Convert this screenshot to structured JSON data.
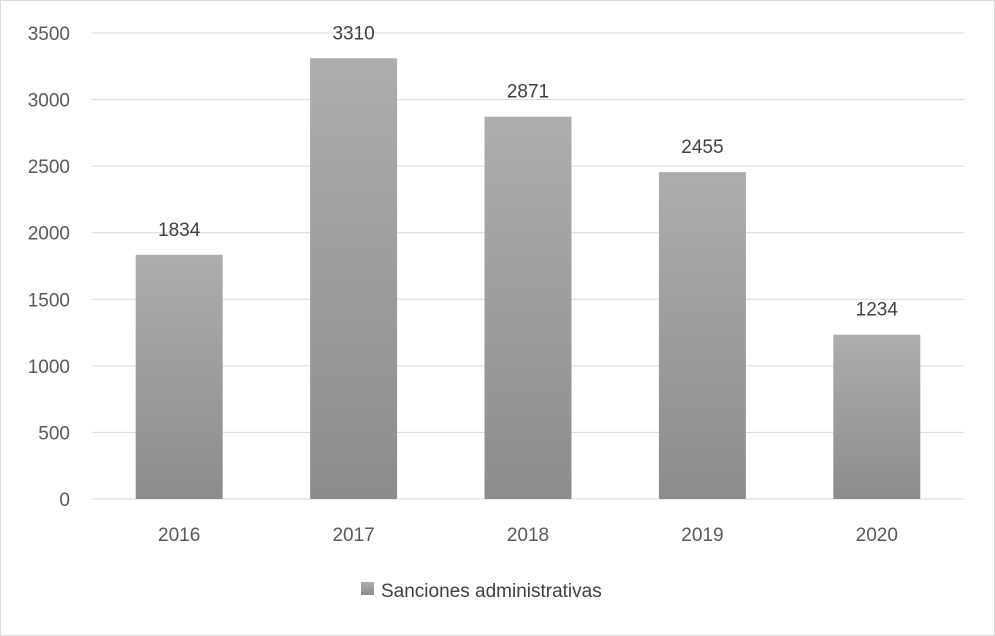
{
  "chart_data": {
    "type": "bar",
    "categories": [
      "2016",
      "2017",
      "2018",
      "2019",
      "2020"
    ],
    "series": [
      {
        "name": "Sanciones administrativas",
        "values": [
          1834,
          3310,
          2871,
          2455,
          1234
        ]
      }
    ],
    "ylim": [
      0,
      3500
    ],
    "yticks": [
      "0",
      "500",
      "1000",
      "1500",
      "2000",
      "2500",
      "3000",
      "3500"
    ],
    "grid": true,
    "legend": "bottom",
    "colors": {
      "bar_top": "#adadad",
      "bar_bottom": "#8c8c8c",
      "grid": "#d9d9d9"
    }
  }
}
